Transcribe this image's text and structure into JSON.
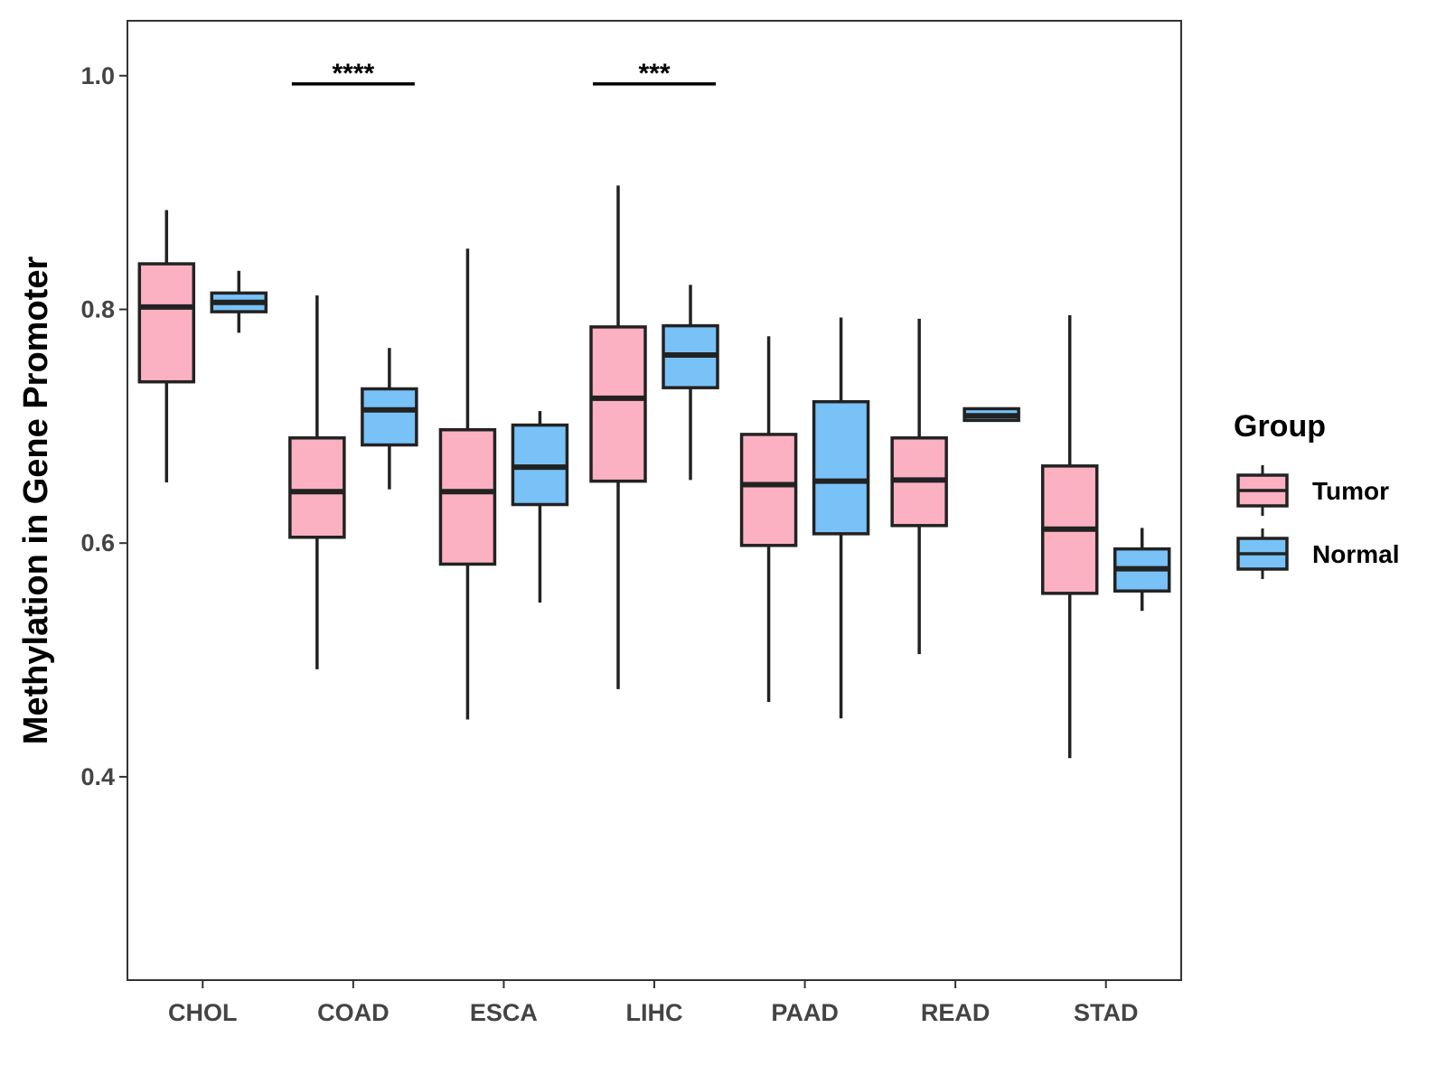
{
  "chart_data": {
    "type": "boxplot",
    "ylabel": "Methylation in Gene Promoter",
    "xlabel": "",
    "ylim": [
      0.226,
      1.047
    ],
    "yticks": [
      0.4,
      0.6,
      0.8,
      1.0
    ],
    "ytick_labels": [
      "0.4",
      "0.6",
      "0.8",
      "1.0"
    ],
    "categories": [
      "CHOL",
      "COAD",
      "ESCA",
      "LIHC",
      "PAAD",
      "READ",
      "STAD"
    ],
    "legend": {
      "title": "Group",
      "position": "right",
      "entries": [
        {
          "name": "Tumor",
          "color": "#FBB1C2"
        },
        {
          "name": "Normal",
          "color": "#78C2F7"
        }
      ]
    },
    "series": [
      {
        "name": "Tumor",
        "color": "#FBB1C2",
        "boxes": [
          {
            "min": 0.652,
            "q1": 0.738,
            "median": 0.802,
            "q3": 0.839,
            "max": 0.885
          },
          {
            "min": 0.492,
            "q1": 0.605,
            "median": 0.644,
            "q3": 0.69,
            "max": 0.812
          },
          {
            "min": 0.449,
            "q1": 0.582,
            "median": 0.644,
            "q3": 0.697,
            "max": 0.852
          },
          {
            "min": 0.475,
            "q1": 0.653,
            "median": 0.724,
            "q3": 0.785,
            "max": 0.906
          },
          {
            "min": 0.464,
            "q1": 0.598,
            "median": 0.65,
            "q3": 0.693,
            "max": 0.777
          },
          {
            "min": 0.505,
            "q1": 0.615,
            "median": 0.654,
            "q3": 0.69,
            "max": 0.792
          },
          {
            "min": 0.416,
            "q1": 0.557,
            "median": 0.612,
            "q3": 0.666,
            "max": 0.795
          }
        ]
      },
      {
        "name": "Normal",
        "color": "#78C2F7",
        "boxes": [
          {
            "min": 0.78,
            "q1": 0.798,
            "median": 0.806,
            "q3": 0.814,
            "max": 0.833
          },
          {
            "min": 0.646,
            "q1": 0.684,
            "median": 0.714,
            "q3": 0.732,
            "max": 0.767
          },
          {
            "min": 0.549,
            "q1": 0.633,
            "median": 0.665,
            "q3": 0.701,
            "max": 0.713
          },
          {
            "min": 0.654,
            "q1": 0.733,
            "median": 0.761,
            "q3": 0.786,
            "max": 0.821
          },
          {
            "min": 0.45,
            "q1": 0.608,
            "median": 0.653,
            "q3": 0.721,
            "max": 0.793
          },
          {
            "min": 0.704,
            "q1": 0.705,
            "median": 0.709,
            "q3": 0.715,
            "max": 0.716
          },
          {
            "min": 0.542,
            "q1": 0.559,
            "median": 0.578,
            "q3": 0.595,
            "max": 0.613
          }
        ]
      }
    ],
    "annotations": [
      {
        "category": "COAD",
        "label": "****",
        "y": 0.993
      },
      {
        "category": "LIHC",
        "label": "***",
        "y": 0.993
      }
    ]
  }
}
